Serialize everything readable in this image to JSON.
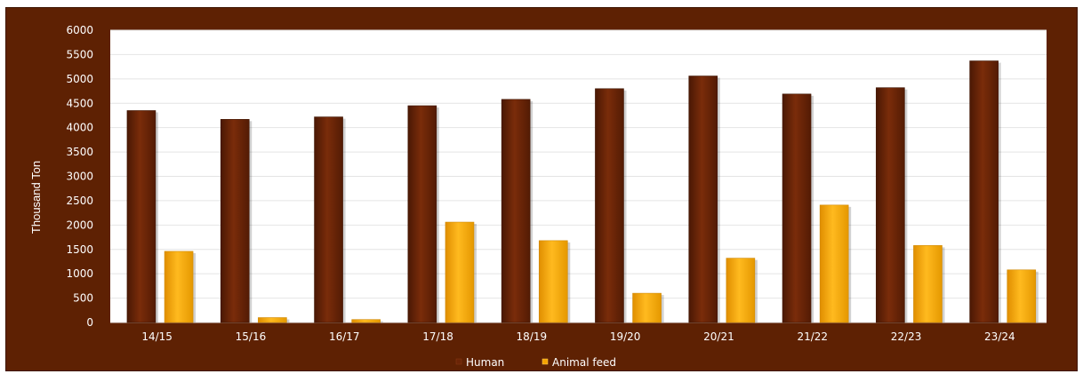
{
  "chart_data": {
    "type": "bar",
    "title": "",
    "xlabel": "",
    "ylabel": "Thousand Ton",
    "ylim": [
      0,
      6000
    ],
    "ytick_step": 500,
    "grid": true,
    "legend_position": "bottom-center",
    "categories": [
      "14/15",
      "15/16",
      "16/17",
      "17/18",
      "18/19",
      "19/20",
      "20/21",
      "21/22",
      "22/23",
      "23/24"
    ],
    "series": [
      {
        "name": "Human",
        "color": "#6b2406",
        "values": [
          4350,
          4170,
          4220,
          4450,
          4580,
          4800,
          5060,
          4690,
          4820,
          5370
        ]
      },
      {
        "name": "Animal feed",
        "color": "#f5a300",
        "values": [
          1460,
          100,
          60,
          2060,
          1680,
          600,
          1320,
          2410,
          1580,
          1080
        ]
      }
    ],
    "colors": {
      "frame": "#5e2103",
      "plot": "#ffffff",
      "text": "#ffffff",
      "grid": "#e4e4e4"
    }
  }
}
